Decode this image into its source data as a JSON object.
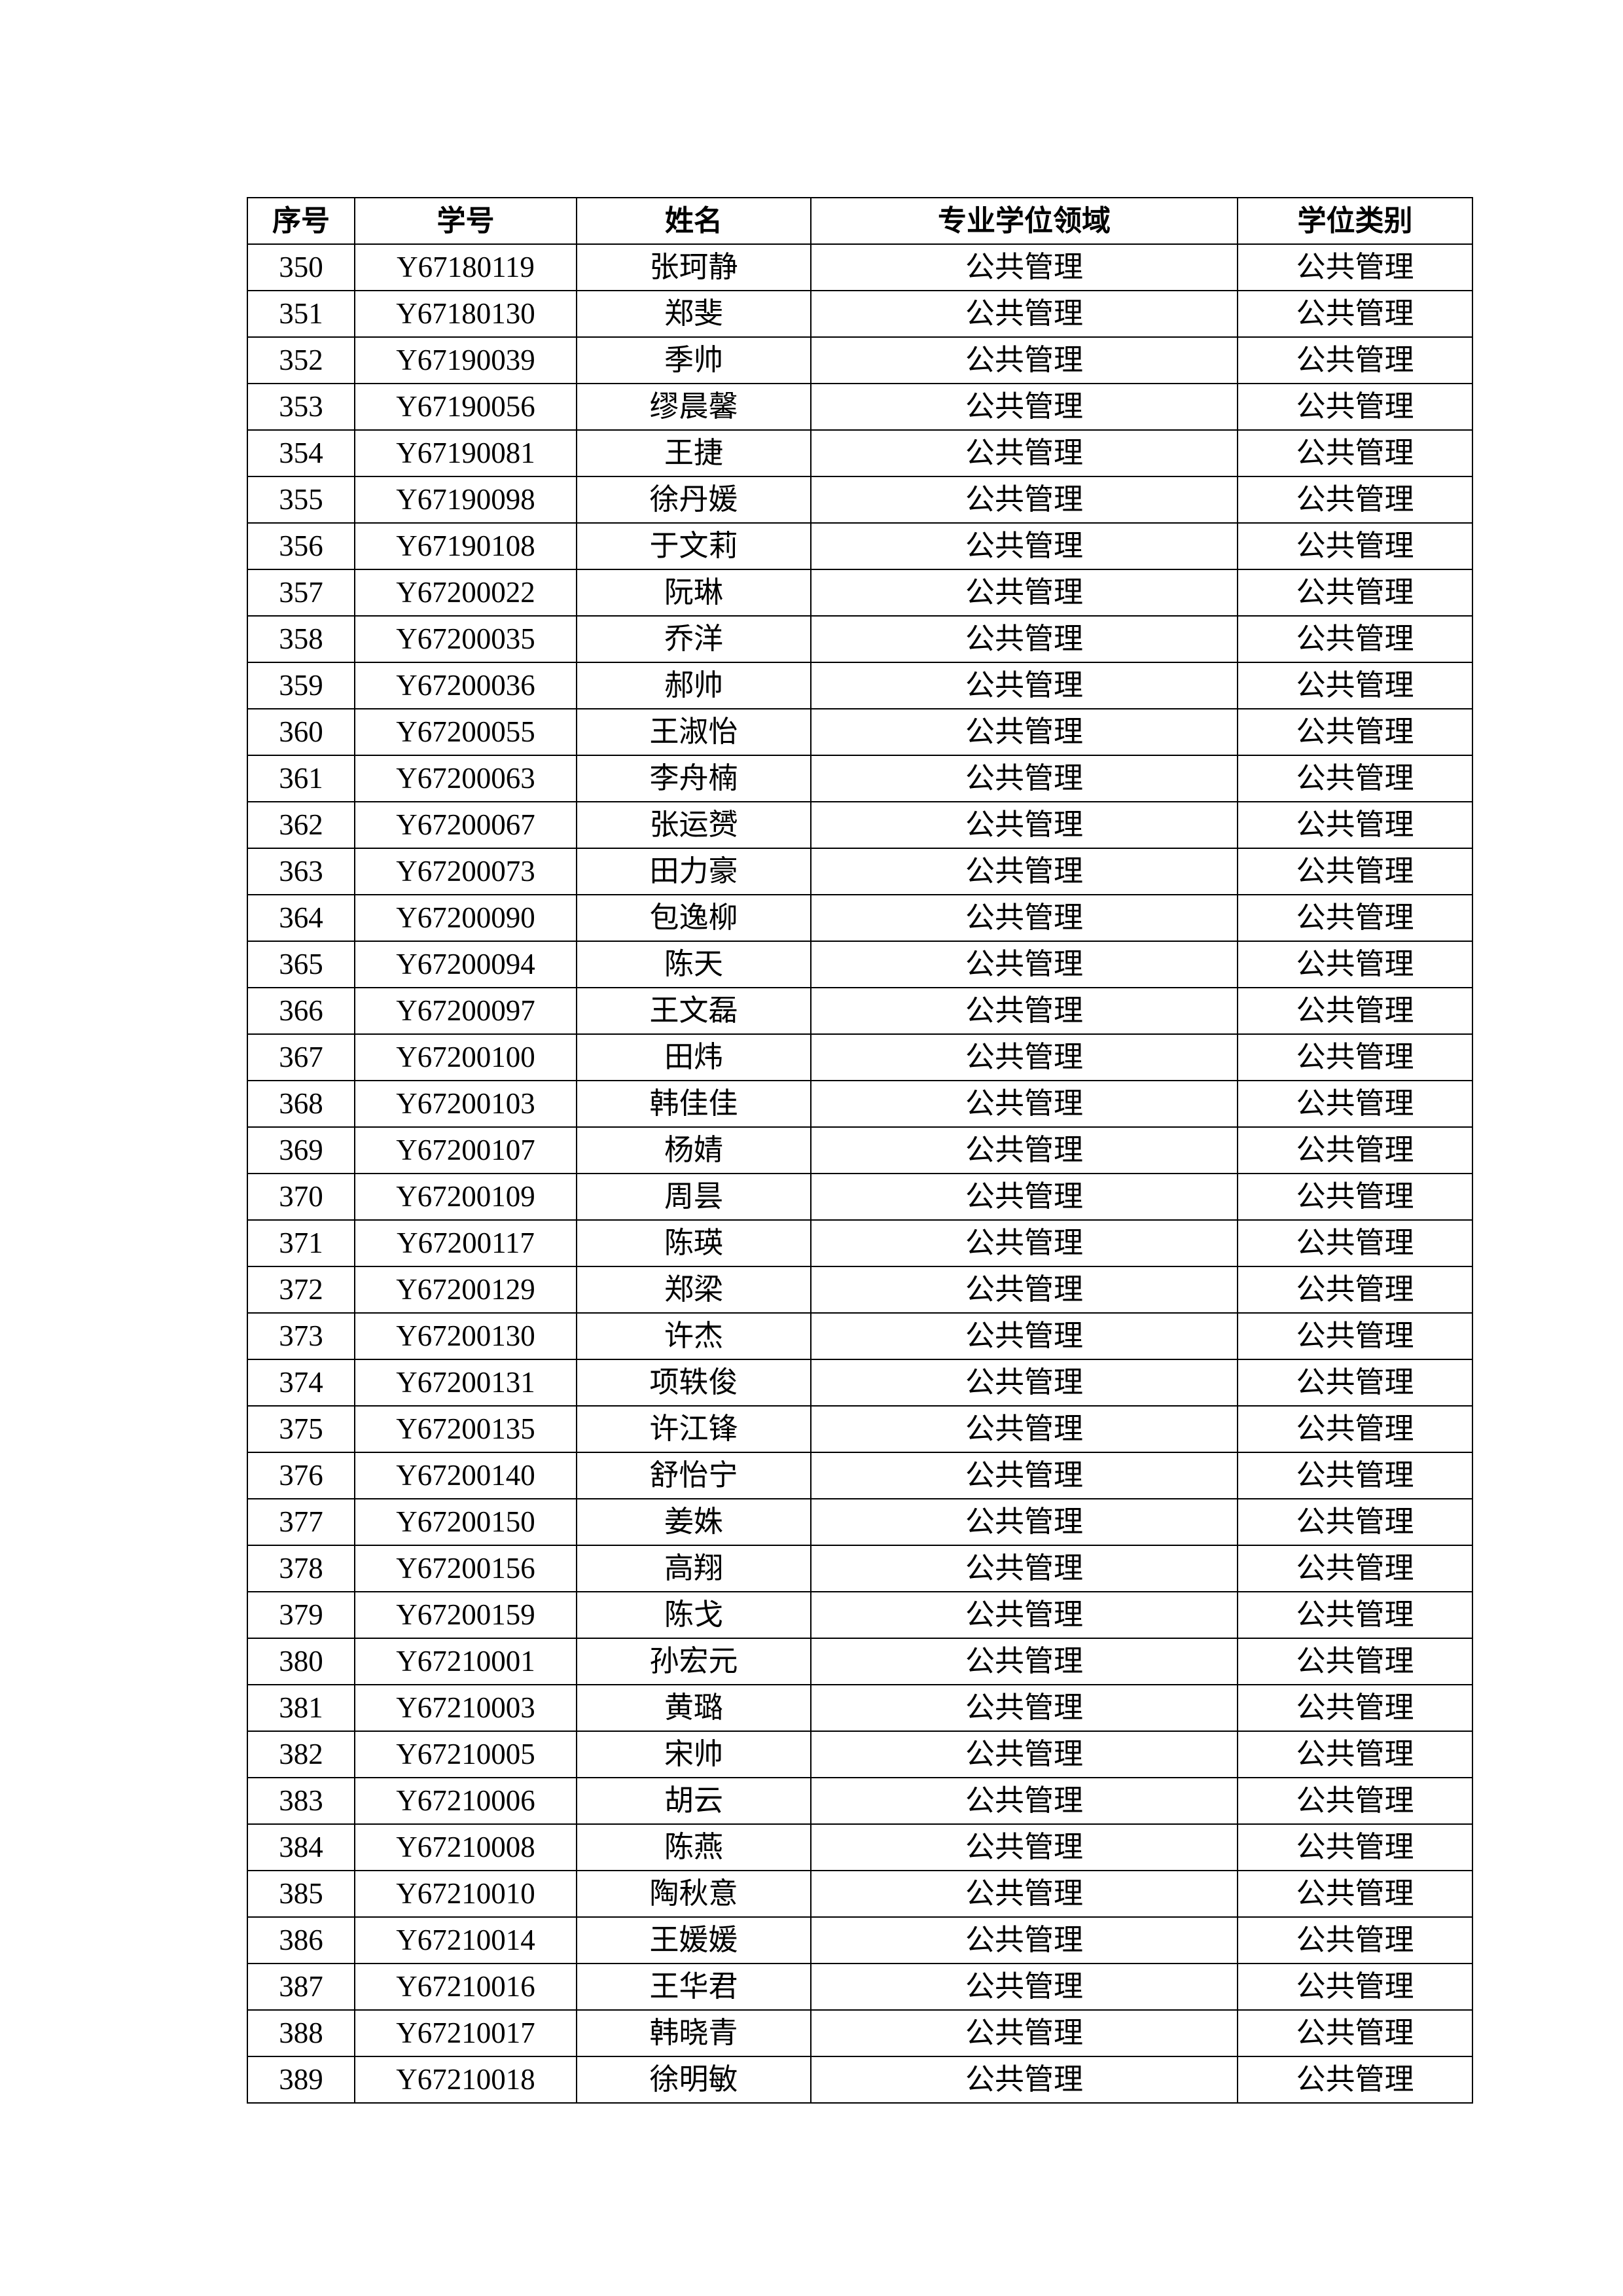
{
  "table": {
    "headers": [
      "序号",
      "学号",
      "姓名",
      "专业学位领域",
      "学位类别"
    ],
    "rows": [
      [
        "350",
        "Y67180119",
        "张珂静",
        "公共管理",
        "公共管理"
      ],
      [
        "351",
        "Y67180130",
        "郑斐",
        "公共管理",
        "公共管理"
      ],
      [
        "352",
        "Y67190039",
        "季帅",
        "公共管理",
        "公共管理"
      ],
      [
        "353",
        "Y67190056",
        "缪晨馨",
        "公共管理",
        "公共管理"
      ],
      [
        "354",
        "Y67190081",
        "王捷",
        "公共管理",
        "公共管理"
      ],
      [
        "355",
        "Y67190098",
        "徐丹媛",
        "公共管理",
        "公共管理"
      ],
      [
        "356",
        "Y67190108",
        "于文莉",
        "公共管理",
        "公共管理"
      ],
      [
        "357",
        "Y67200022",
        "阮琳",
        "公共管理",
        "公共管理"
      ],
      [
        "358",
        "Y67200035",
        "乔洋",
        "公共管理",
        "公共管理"
      ],
      [
        "359",
        "Y67200036",
        "郝帅",
        "公共管理",
        "公共管理"
      ],
      [
        "360",
        "Y67200055",
        "王淑怡",
        "公共管理",
        "公共管理"
      ],
      [
        "361",
        "Y67200063",
        "李舟楠",
        "公共管理",
        "公共管理"
      ],
      [
        "362",
        "Y67200067",
        "张运赟",
        "公共管理",
        "公共管理"
      ],
      [
        "363",
        "Y67200073",
        "田力豪",
        "公共管理",
        "公共管理"
      ],
      [
        "364",
        "Y67200090",
        "包逸柳",
        "公共管理",
        "公共管理"
      ],
      [
        "365",
        "Y67200094",
        "陈天",
        "公共管理",
        "公共管理"
      ],
      [
        "366",
        "Y67200097",
        "王文磊",
        "公共管理",
        "公共管理"
      ],
      [
        "367",
        "Y67200100",
        "田炜",
        "公共管理",
        "公共管理"
      ],
      [
        "368",
        "Y67200103",
        "韩佳佳",
        "公共管理",
        "公共管理"
      ],
      [
        "369",
        "Y67200107",
        "杨婧",
        "公共管理",
        "公共管理"
      ],
      [
        "370",
        "Y67200109",
        "周昙",
        "公共管理",
        "公共管理"
      ],
      [
        "371",
        "Y67200117",
        "陈瑛",
        "公共管理",
        "公共管理"
      ],
      [
        "372",
        "Y67200129",
        "郑梁",
        "公共管理",
        "公共管理"
      ],
      [
        "373",
        "Y67200130",
        "许杰",
        "公共管理",
        "公共管理"
      ],
      [
        "374",
        "Y67200131",
        "项轶俊",
        "公共管理",
        "公共管理"
      ],
      [
        "375",
        "Y67200135",
        "许江锋",
        "公共管理",
        "公共管理"
      ],
      [
        "376",
        "Y67200140",
        "舒怡宁",
        "公共管理",
        "公共管理"
      ],
      [
        "377",
        "Y67200150",
        "姜姝",
        "公共管理",
        "公共管理"
      ],
      [
        "378",
        "Y67200156",
        "高翔",
        "公共管理",
        "公共管理"
      ],
      [
        "379",
        "Y67200159",
        "陈戈",
        "公共管理",
        "公共管理"
      ],
      [
        "380",
        "Y67210001",
        "孙宏元",
        "公共管理",
        "公共管理"
      ],
      [
        "381",
        "Y67210003",
        "黄璐",
        "公共管理",
        "公共管理"
      ],
      [
        "382",
        "Y67210005",
        "宋帅",
        "公共管理",
        "公共管理"
      ],
      [
        "383",
        "Y67210006",
        "胡云",
        "公共管理",
        "公共管理"
      ],
      [
        "384",
        "Y67210008",
        "陈燕",
        "公共管理",
        "公共管理"
      ],
      [
        "385",
        "Y67210010",
        "陶秋意",
        "公共管理",
        "公共管理"
      ],
      [
        "386",
        "Y67210014",
        "王媛媛",
        "公共管理",
        "公共管理"
      ],
      [
        "387",
        "Y67210016",
        "王华君",
        "公共管理",
        "公共管理"
      ],
      [
        "388",
        "Y67210017",
        "韩晓青",
        "公共管理",
        "公共管理"
      ],
      [
        "389",
        "Y67210018",
        "徐明敏",
        "公共管理",
        "公共管理"
      ]
    ]
  }
}
